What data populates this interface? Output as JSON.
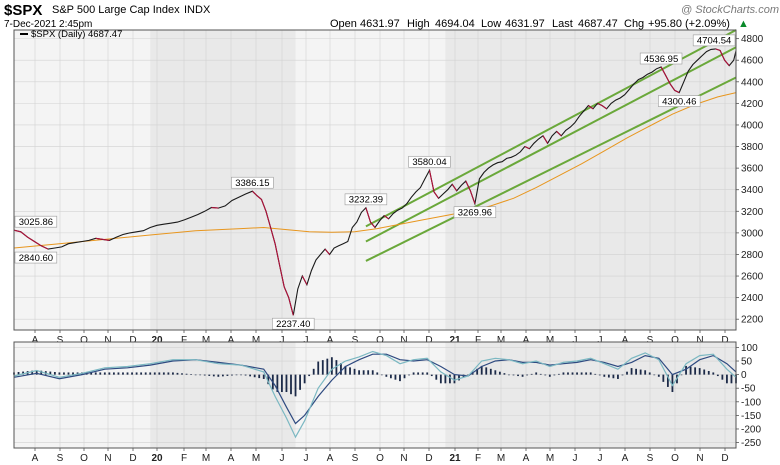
{
  "header": {
    "symbol": "$SPX",
    "name": "S&P 500 Large Cap Index",
    "exchange": "INDX",
    "date": "7-Dec-2021 2:45pm",
    "watermark": "@ StockCharts.com",
    "open_label": "Open",
    "open": "4631.97",
    "high_label": "High",
    "high": "4694.04",
    "low_label": "Low",
    "low": "4631.97",
    "last_label": "Last",
    "last": "4687.47",
    "chg_label": "Chg",
    "chg": "+95.80 (+2.09%)",
    "chg_arrow": "▲"
  },
  "legend": {
    "text": "$SPX (Daily) 4687.47"
  },
  "colors": {
    "price": "#b0103a",
    "ma": "#e8961e",
    "channel": "#6aa83a",
    "osc_fast": "#7bb8c2",
    "osc_slow": "#2e4a80",
    "hist": "#1c2a48",
    "band": "#e9e9e9",
    "grid": "#d2d2d2"
  },
  "chart_data": [
    {
      "type": "line",
      "title": "$SPX S&P 500 Large Cap Index",
      "series_label": "$SPX (Daily) 4687.47",
      "ylim": [
        2100,
        4880
      ],
      "yticks": [
        2200,
        2400,
        2600,
        2800,
        3000,
        3200,
        3400,
        3600,
        3800,
        4000,
        4200,
        4400,
        4600,
        4800
      ],
      "x_labels": [
        "A",
        "S",
        "O",
        "N",
        "D",
        "20",
        "F",
        "M",
        "A",
        "M",
        "J",
        "J",
        "A",
        "S",
        "O",
        "N",
        "D",
        "21",
        "F",
        "M",
        "A",
        "M",
        "J",
        "J",
        "A",
        "S",
        "O",
        "N",
        "D"
      ],
      "grid": true,
      "price": [
        [
          0,
          3025
        ],
        [
          3,
          3010
        ],
        [
          6,
          2960
        ],
        [
          9,
          2920
        ],
        [
          12,
          2880
        ],
        [
          15,
          2850
        ],
        [
          18,
          2860
        ],
        [
          21,
          2870
        ],
        [
          24,
          2900
        ],
        [
          27,
          2910
        ],
        [
          30,
          2920
        ],
        [
          33,
          2930
        ],
        [
          36,
          2950
        ],
        [
          39,
          2940
        ],
        [
          42,
          2930
        ],
        [
          45,
          2960
        ],
        [
          48,
          2985
        ],
        [
          51,
          3000
        ],
        [
          54,
          3010
        ],
        [
          57,
          3020
        ],
        [
          60,
          3050
        ],
        [
          63,
          3070
        ],
        [
          66,
          3080
        ],
        [
          69,
          3090
        ],
        [
          72,
          3100
        ],
        [
          75,
          3120
        ],
        [
          78,
          3145
        ],
        [
          81,
          3170
        ],
        [
          84,
          3200
        ],
        [
          87,
          3235
        ],
        [
          90,
          3230
        ],
        [
          93,
          3250
        ],
        [
          96,
          3300
        ],
        [
          99,
          3330
        ],
        [
          102,
          3360
        ],
        [
          105,
          3386
        ],
        [
          107,
          3345
        ],
        [
          109,
          3310
        ],
        [
          111,
          3200
        ],
        [
          113,
          3050
        ],
        [
          115,
          2900
        ],
        [
          117,
          2700
        ],
        [
          119,
          2500
        ],
        [
          121,
          2400
        ],
        [
          123,
          2237
        ],
        [
          125,
          2480
        ],
        [
          127,
          2600
        ],
        [
          129,
          2520
        ],
        [
          131,
          2650
        ],
        [
          133,
          2750
        ],
        [
          135,
          2800
        ],
        [
          137,
          2850
        ],
        [
          139,
          2800
        ],
        [
          141,
          2860
        ],
        [
          143,
          2880
        ],
        [
          145,
          2900
        ],
        [
          147,
          2920
        ],
        [
          149,
          3050
        ],
        [
          151,
          3100
        ],
        [
          153,
          3190
        ],
        [
          155,
          3232
        ],
        [
          157,
          3100
        ],
        [
          159,
          3050
        ],
        [
          161,
          3110
        ],
        [
          163,
          3160
        ],
        [
          165,
          3130
        ],
        [
          167,
          3180
        ],
        [
          169,
          3210
        ],
        [
          171,
          3230
        ],
        [
          173,
          3270
        ],
        [
          175,
          3330
        ],
        [
          177,
          3380
        ],
        [
          179,
          3420
        ],
        [
          181,
          3500
        ],
        [
          183,
          3580
        ],
        [
          185,
          3380
        ],
        [
          187,
          3320
        ],
        [
          189,
          3360
        ],
        [
          191,
          3400
        ],
        [
          193,
          3450
        ],
        [
          195,
          3390
        ],
        [
          197,
          3440
        ],
        [
          199,
          3480
        ],
        [
          201,
          3390
        ],
        [
          203,
          3270
        ],
        [
          205,
          3500
        ],
        [
          207,
          3560
        ],
        [
          209,
          3600
        ],
        [
          211,
          3630
        ],
        [
          213,
          3650
        ],
        [
          215,
          3660
        ],
        [
          217,
          3690
        ],
        [
          219,
          3700
        ],
        [
          221,
          3720
        ],
        [
          223,
          3750
        ],
        [
          225,
          3800
        ],
        [
          227,
          3780
        ],
        [
          229,
          3830
        ],
        [
          231,
          3870
        ],
        [
          233,
          3900
        ],
        [
          235,
          3830
        ],
        [
          237,
          3900
        ],
        [
          239,
          3940
        ],
        [
          241,
          3900
        ],
        [
          243,
          3950
        ],
        [
          245,
          3980
        ],
        [
          247,
          4020
        ],
        [
          249,
          4080
        ],
        [
          251,
          4130
        ],
        [
          253,
          4180
        ],
        [
          255,
          4150
        ],
        [
          257,
          4200
        ],
        [
          259,
          4180
        ],
        [
          261,
          4150
        ],
        [
          263,
          4200
        ],
        [
          265,
          4230
        ],
        [
          267,
          4250
        ],
        [
          269,
          4280
        ],
        [
          271,
          4330
        ],
        [
          273,
          4380
        ],
        [
          275,
          4420
        ],
        [
          277,
          4440
        ],
        [
          279,
          4470
        ],
        [
          281,
          4490
        ],
        [
          283,
          4520
        ],
        [
          285,
          4537
        ],
        [
          287,
          4460
        ],
        [
          289,
          4380
        ],
        [
          291,
          4320
        ],
        [
          293,
          4300
        ],
        [
          295,
          4400
        ],
        [
          297,
          4500
        ],
        [
          299,
          4560
        ],
        [
          301,
          4600
        ],
        [
          303,
          4640
        ],
        [
          305,
          4680
        ],
        [
          307,
          4700
        ],
        [
          309,
          4705
        ],
        [
          311,
          4690
        ],
        [
          313,
          4600
        ],
        [
          315,
          4550
        ],
        [
          317,
          4600
        ],
        [
          318,
          4687
        ]
      ],
      "ma200": [
        [
          0,
          2860
        ],
        [
          20,
          2900
        ],
        [
          40,
          2940
        ],
        [
          60,
          2980
        ],
        [
          80,
          3020
        ],
        [
          100,
          3040
        ],
        [
          110,
          3050
        ],
        [
          120,
          3030
        ],
        [
          130,
          3010
        ],
        [
          140,
          3005
        ],
        [
          150,
          3010
        ],
        [
          160,
          3040
        ],
        [
          170,
          3080
        ],
        [
          180,
          3120
        ],
        [
          190,
          3160
        ],
        [
          200,
          3200
        ],
        [
          210,
          3250
        ],
        [
          220,
          3320
        ],
        [
          230,
          3420
        ],
        [
          240,
          3530
        ],
        [
          250,
          3640
        ],
        [
          260,
          3760
        ],
        [
          270,
          3880
        ],
        [
          280,
          3990
        ],
        [
          290,
          4100
        ],
        [
          300,
          4190
        ],
        [
          310,
          4260
        ],
        [
          318,
          4300
        ]
      ],
      "channel_lines": [
        [
          [
            155,
            3060
          ],
          [
            318,
            4880
          ]
        ],
        [
          [
            155,
            2920
          ],
          [
            318,
            4720
          ]
        ],
        [
          [
            155,
            2740
          ],
          [
            318,
            4440
          ]
        ]
      ],
      "annotations": [
        {
          "text": "3025.86",
          "x": 0,
          "y": 3025,
          "pos": "above"
        },
        {
          "text": "2840.60",
          "x": 2,
          "y": 2850,
          "pos": "below"
        },
        {
          "text": "3386.15",
          "x": 105,
          "y": 3386,
          "pos": "above"
        },
        {
          "text": "2237.40",
          "x": 123,
          "y": 2237,
          "pos": "below"
        },
        {
          "text": "3232.39",
          "x": 155,
          "y": 3232,
          "pos": "above"
        },
        {
          "text": "3580.04",
          "x": 183,
          "y": 3580,
          "pos": "above"
        },
        {
          "text": "3269.96",
          "x": 203,
          "y": 3270,
          "pos": "below"
        },
        {
          "text": "4536.95",
          "x": 285,
          "y": 4537,
          "pos": "above"
        },
        {
          "text": "4300.46",
          "x": 293,
          "y": 4300,
          "pos": "below"
        },
        {
          "text": "4704.54",
          "x": 309,
          "y": 4705,
          "pos": "above"
        }
      ],
      "shaded_period": [
        [
          60,
          124
        ],
        [
          190,
          318
        ]
      ]
    },
    {
      "type": "line",
      "title": "",
      "ylim": [
        -270,
        120
      ],
      "yticks": [
        100,
        50,
        0,
        -50,
        -100,
        -150,
        -200,
        -250
      ],
      "x_labels": [
        "A",
        "S",
        "O",
        "N",
        "D",
        "20",
        "F",
        "M",
        "A",
        "M",
        "J",
        "J",
        "A",
        "S",
        "O",
        "N",
        "D",
        "21",
        "F",
        "M",
        "A",
        "M",
        "J",
        "J",
        "A",
        "S",
        "O",
        "N",
        "D"
      ],
      "fast": [
        [
          0,
          -5
        ],
        [
          10,
          15
        ],
        [
          20,
          -10
        ],
        [
          30,
          5
        ],
        [
          40,
          25
        ],
        [
          50,
          30
        ],
        [
          60,
          40
        ],
        [
          70,
          55
        ],
        [
          80,
          55
        ],
        [
          90,
          40
        ],
        [
          100,
          35
        ],
        [
          110,
          10
        ],
        [
          115,
          -80
        ],
        [
          120,
          -160
        ],
        [
          124,
          -230
        ],
        [
          128,
          -170
        ],
        [
          134,
          -50
        ],
        [
          140,
          20
        ],
        [
          146,
          50
        ],
        [
          152,
          65
        ],
        [
          158,
          85
        ],
        [
          164,
          70
        ],
        [
          170,
          40
        ],
        [
          176,
          55
        ],
        [
          182,
          60
        ],
        [
          188,
          10
        ],
        [
          194,
          -20
        ],
        [
          200,
          -5
        ],
        [
          206,
          50
        ],
        [
          212,
          60
        ],
        [
          218,
          55
        ],
        [
          224,
          40
        ],
        [
          230,
          50
        ],
        [
          236,
          30
        ],
        [
          242,
          45
        ],
        [
          248,
          50
        ],
        [
          254,
          60
        ],
        [
          260,
          40
        ],
        [
          266,
          20
        ],
        [
          272,
          60
        ],
        [
          278,
          80
        ],
        [
          284,
          55
        ],
        [
          290,
          -40
        ],
        [
          296,
          40
        ],
        [
          302,
          70
        ],
        [
          308,
          75
        ],
        [
          314,
          20
        ],
        [
          318,
          -10
        ]
      ],
      "slow": [
        [
          0,
          -10
        ],
        [
          10,
          5
        ],
        [
          20,
          -15
        ],
        [
          30,
          0
        ],
        [
          40,
          20
        ],
        [
          50,
          25
        ],
        [
          60,
          35
        ],
        [
          70,
          50
        ],
        [
          80,
          55
        ],
        [
          90,
          45
        ],
        [
          100,
          35
        ],
        [
          110,
          20
        ],
        [
          115,
          -40
        ],
        [
          120,
          -120
        ],
        [
          124,
          -180
        ],
        [
          128,
          -150
        ],
        [
          134,
          -80
        ],
        [
          140,
          -20
        ],
        [
          146,
          30
        ],
        [
          152,
          55
        ],
        [
          158,
          75
        ],
        [
          164,
          75
        ],
        [
          170,
          55
        ],
        [
          176,
          50
        ],
        [
          182,
          55
        ],
        [
          188,
          30
        ],
        [
          194,
          0
        ],
        [
          200,
          -5
        ],
        [
          206,
          30
        ],
        [
          212,
          50
        ],
        [
          218,
          55
        ],
        [
          224,
          45
        ],
        [
          230,
          45
        ],
        [
          236,
          35
        ],
        [
          242,
          40
        ],
        [
          248,
          45
        ],
        [
          254,
          55
        ],
        [
          260,
          45
        ],
        [
          266,
          30
        ],
        [
          272,
          45
        ],
        [
          278,
          70
        ],
        [
          284,
          60
        ],
        [
          290,
          0
        ],
        [
          296,
          20
        ],
        [
          302,
          55
        ],
        [
          308,
          70
        ],
        [
          314,
          40
        ],
        [
          318,
          10
        ]
      ]
    }
  ]
}
